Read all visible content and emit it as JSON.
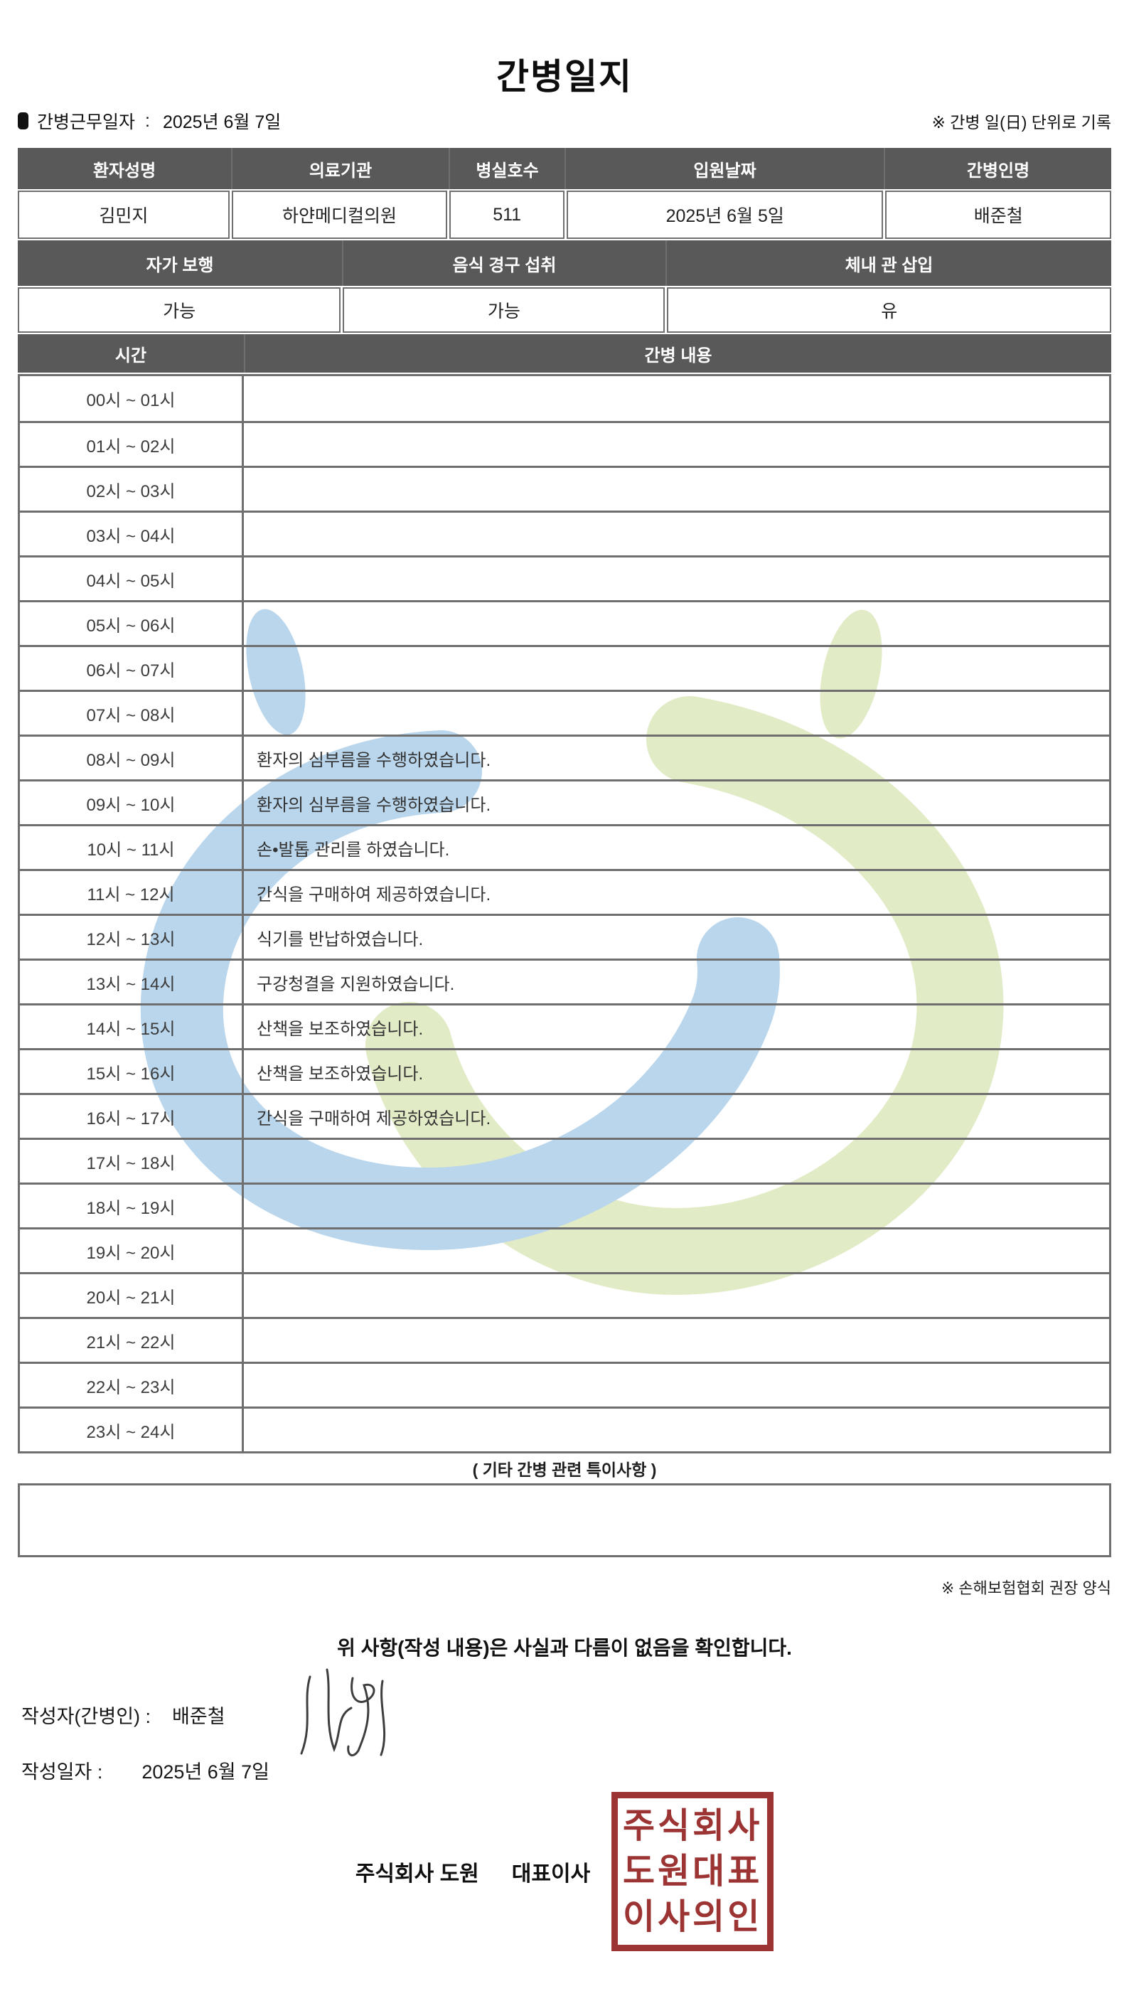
{
  "title": "간병일지",
  "meta": {
    "work_date_label": "간병근무일자",
    "separator": ":",
    "work_date": "2025년 6월 7일",
    "unit_note": "※ 간병 일(日) 단위로 기록"
  },
  "patient_table": {
    "headers": [
      "환자성명",
      "의료기관",
      "병실호수",
      "입원날짜",
      "간병인명"
    ],
    "values": [
      "김민지",
      "하얀메디컬의원",
      "511",
      "2025년 6월 5일",
      "배준철"
    ]
  },
  "status_table": {
    "headers": [
      "자가 보행",
      "음식 경구 섭취",
      "체내 관 삽입"
    ],
    "values": [
      "가능",
      "가능",
      "유"
    ]
  },
  "care_table": {
    "time_header": "시간",
    "content_header": "간병 내용",
    "rows": [
      {
        "time": "00시 ~ 01시",
        "content": ""
      },
      {
        "time": "01시 ~ 02시",
        "content": ""
      },
      {
        "time": "02시 ~ 03시",
        "content": ""
      },
      {
        "time": "03시 ~ 04시",
        "content": ""
      },
      {
        "time": "04시 ~ 05시",
        "content": ""
      },
      {
        "time": "05시 ~ 06시",
        "content": ""
      },
      {
        "time": "06시 ~ 07시",
        "content": ""
      },
      {
        "time": "07시 ~ 08시",
        "content": ""
      },
      {
        "time": "08시 ~ 09시",
        "content": "환자의 심부름을 수행하였습니다."
      },
      {
        "time": "09시 ~ 10시",
        "content": "환자의 심부름을 수행하였습니다."
      },
      {
        "time": "10시 ~ 11시",
        "content": "손•발톱 관리를 하였습니다."
      },
      {
        "time": "11시 ~ 12시",
        "content": "간식을 구매하여 제공하였습니다."
      },
      {
        "time": "12시 ~ 13시",
        "content": "식기를 반납하였습니다."
      },
      {
        "time": "13시 ~ 14시",
        "content": "구강청결을 지원하였습니다."
      },
      {
        "time": "14시 ~ 15시",
        "content": "산책을 보조하였습니다."
      },
      {
        "time": "15시 ~ 16시",
        "content": "산책을 보조하였습니다."
      },
      {
        "time": "16시 ~ 17시",
        "content": "간식을 구매하여 제공하였습니다."
      },
      {
        "time": "17시 ~ 18시",
        "content": ""
      },
      {
        "time": "18시 ~ 19시",
        "content": ""
      },
      {
        "time": "19시 ~ 20시",
        "content": ""
      },
      {
        "time": "20시 ~ 21시",
        "content": ""
      },
      {
        "time": "21시 ~ 22시",
        "content": ""
      },
      {
        "time": "22시 ~ 23시",
        "content": ""
      },
      {
        "time": "23시 ~ 24시",
        "content": ""
      }
    ]
  },
  "notes": {
    "special_title": "( 기타 간병 관련 특이사항 )",
    "special_content": "",
    "form_note": "※ 손해보험협회 권장 양식"
  },
  "confirmation": {
    "statement": "위 사항(작성 내용)은 사실과 다름이 없음을 확인합니다.",
    "writer_label": "작성자(간병인) :",
    "writer_name": "배준철",
    "date_label": "작성일자 :",
    "date_value": "2025년 6월 7일",
    "company_label": "주식회사 도원",
    "ceo_label": "대표이사",
    "stamp_lines": [
      "주식회사",
      "도원대표",
      "이사의인"
    ]
  },
  "colors": {
    "header_bg": "#595959",
    "table_border": "#6f6f6f",
    "stamp_red": "#9c3434",
    "watermark_blue": "#aecfe9",
    "watermark_green": "#dce8bd"
  }
}
